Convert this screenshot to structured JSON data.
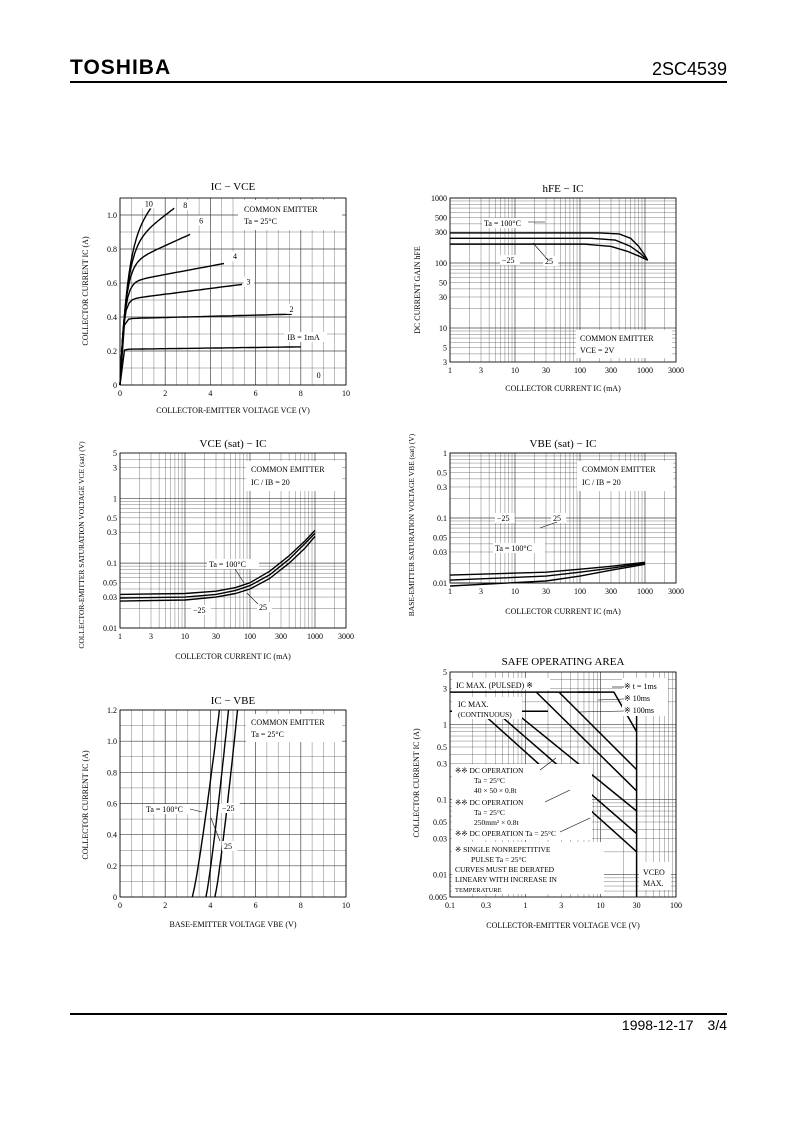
{
  "header": {
    "brand": "TOSHIBA",
    "part_number": "2SC4539"
  },
  "footer": {
    "date": "1998-12-17",
    "page": "3/4"
  },
  "chart_data": [
    {
      "id": "ic-vce",
      "type": "line",
      "title": "IC − VCE",
      "xlabel": "COLLECTOR-EMITTER VOLTAGE   VCE   (V)",
      "ylabel": "COLLECTOR CURRENT   IC   (A)",
      "xlim": [
        0,
        10
      ],
      "ylim": [
        0,
        1.1
      ],
      "x_ticks": [
        0,
        2,
        4,
        6,
        8,
        10
      ],
      "y_ticks": [
        0,
        0.2,
        0.4,
        0.6,
        0.8,
        1.0
      ],
      "condition": [
        "COMMON EMITTER",
        "Ta = 25°C"
      ],
      "series": [
        {
          "name": "IB = 1mA",
          "sat": 0.21,
          "knee": 0.15,
          "end": 8,
          "slope": 0.0018,
          "label_at": [
            7.4,
            0.265
          ]
        },
        {
          "name": "2",
          "sat": 0.39,
          "knee": 0.25,
          "end": 7.6,
          "slope": 0.0035,
          "label_at": [
            7.5,
            0.43
          ]
        },
        {
          "name": "3",
          "sat": 0.5,
          "knee": 0.4,
          "end": 5.4,
          "slope": 0.017,
          "label_at": [
            5.6,
            0.59
          ]
        },
        {
          "name": "4",
          "sat": 0.6,
          "knee": 0.55,
          "end": 4.6,
          "slope": 0.025,
          "label_at": [
            5.0,
            0.74
          ]
        },
        {
          "name": "6",
          "sat": 0.7,
          "knee": 0.7,
          "end": 3.1,
          "slope": 0.06,
          "label_at": [
            3.5,
            0.95
          ]
        },
        {
          "name": "8",
          "sat": 0.8,
          "knee": 0.9,
          "end": 2.4,
          "slope": 0.1,
          "label_at": [
            2.8,
            1.04
          ]
        },
        {
          "name": "10",
          "sat": 0.85,
          "knee": 1.0,
          "end": 1.5,
          "slope": 0.15,
          "label_at": [
            1.1,
            1.05
          ]
        }
      ],
      "extra_labels": [
        {
          "text": "0",
          "at": [
            8.7,
            0.04
          ]
        }
      ]
    },
    {
      "id": "hfe-ic",
      "type": "line",
      "title": "hFE − IC",
      "xlabel": "COLLECTOR CURRENT   IC   (mA)",
      "ylabel": "DC CURRENT GAIN   hFE",
      "xscale": "log",
      "yscale": "log",
      "xlim": [
        1,
        3000
      ],
      "ylim": [
        3,
        1000
      ],
      "x_ticks": [
        1,
        3,
        10,
        30,
        100,
        300,
        1000,
        3000
      ],
      "y_ticks": [
        3,
        5,
        10,
        30,
        50,
        100,
        300,
        500,
        1000
      ],
      "condition": [
        "COMMON EMITTER",
        "VCE = 2V"
      ],
      "series": [
        {
          "name": "Ta = 100°C",
          "points": [
            [
              1,
              290
            ],
            [
              200,
              290
            ],
            [
              400,
              280
            ],
            [
              600,
              240
            ],
            [
              800,
              180
            ],
            [
              1000,
              130
            ],
            [
              1100,
              110
            ]
          ]
        },
        {
          "name": "25",
          "points": [
            [
              1,
              240
            ],
            [
              150,
              240
            ],
            [
              350,
              225
            ],
            [
              600,
              180
            ],
            [
              850,
              140
            ],
            [
              1100,
              110
            ]
          ]
        },
        {
          "name": "−25",
          "points": [
            [
              1,
              195
            ],
            [
              120,
              195
            ],
            [
              300,
              180
            ],
            [
              550,
              150
            ],
            [
              850,
              125
            ],
            [
              1100,
              110
            ]
          ]
        }
      ]
    },
    {
      "id": "vcesat-ic",
      "type": "line",
      "title": "VCE (sat) − IC",
      "xlabel": "COLLECTOR CURRENT   IC   (mA)",
      "ylabel": "COLLECTOR-EMITTER SATURATION VOLTAGE   VCE (sat)   (V)",
      "xscale": "log",
      "yscale": "log",
      "xlim": [
        1,
        3000
      ],
      "ylim": [
        0.01,
        5
      ],
      "x_ticks": [
        1,
        3,
        10,
        30,
        100,
        300,
        1000,
        3000
      ],
      "y_ticks": [
        0.01,
        0.03,
        0.05,
        0.1,
        0.3,
        0.5,
        1,
        3,
        5
      ],
      "condition": [
        "COMMON EMITTER",
        "IC / IB = 20"
      ],
      "series": [
        {
          "name": "Ta = 100°C",
          "points": [
            [
              1,
              0.033
            ],
            [
              10,
              0.034
            ],
            [
              30,
              0.037
            ],
            [
              60,
              0.042
            ],
            [
              100,
              0.05
            ],
            [
              200,
              0.075
            ],
            [
              400,
              0.13
            ],
            [
              700,
              0.22
            ],
            [
              1000,
              0.32
            ]
          ]
        },
        {
          "name": "25",
          "points": [
            [
              1,
              0.029
            ],
            [
              10,
              0.03
            ],
            [
              30,
              0.033
            ],
            [
              60,
              0.038
            ],
            [
              100,
              0.045
            ],
            [
              200,
              0.066
            ],
            [
              400,
              0.115
            ],
            [
              700,
              0.2
            ],
            [
              1000,
              0.29
            ]
          ]
        },
        {
          "name": "−25",
          "points": [
            [
              1,
              0.026
            ],
            [
              10,
              0.027
            ],
            [
              30,
              0.03
            ],
            [
              60,
              0.034
            ],
            [
              100,
              0.04
            ],
            [
              200,
              0.058
            ],
            [
              400,
              0.1
            ],
            [
              700,
              0.17
            ],
            [
              1000,
              0.26
            ]
          ]
        }
      ]
    },
    {
      "id": "vbesat-ic",
      "type": "line",
      "title": "VBE (sat) − IC",
      "xlabel": "COLLECTOR CURRENT   IC   (mA)",
      "ylabel": "BASE-EMITTER SATURATION VOLTAGE   VBE (sat)   (V)",
      "xscale": "log",
      "yscale": "log",
      "xlim": [
        1,
        3000
      ],
      "ylim": [
        0.01,
        1
      ],
      "x_ticks": [
        1,
        3,
        10,
        30,
        100,
        300,
        1000,
        3000
      ],
      "y_tick_labels": [
        "1",
        "0.5",
        "0.3",
        "0.1",
        "0.05",
        "0.03",
        "0.01"
      ],
      "y_tick_rows": [
        0,
        0.1,
        0.18,
        0.33,
        0.43,
        0.5,
        0.66
      ],
      "condition": [
        "COMMON EMITTER",
        "IC / IB = 20"
      ],
      "series": [
        {
          "name": "−25",
          "rows": [
            [
              1,
              0.62
            ],
            [
              30,
              0.605
            ],
            [
              100,
              0.59
            ],
            [
              300,
              0.575
            ],
            [
              1000,
              0.555
            ]
          ]
        },
        {
          "name": "25",
          "rows": [
            [
              1,
              0.645
            ],
            [
              30,
              0.625
            ],
            [
              100,
              0.605
            ],
            [
              300,
              0.585
            ],
            [
              1000,
              0.56
            ]
          ]
        },
        {
          "name": "Ta = 100°C",
          "rows": [
            [
              1,
              0.675
            ],
            [
              30,
              0.65
            ],
            [
              100,
              0.625
            ],
            [
              300,
              0.595
            ],
            [
              1000,
              0.565
            ]
          ]
        }
      ]
    },
    {
      "id": "ic-vbe",
      "type": "line",
      "title": "IC − VBE",
      "xlabel": "BASE-EMITTER VOLTAGE   VBE   (V)",
      "ylabel": "COLLECTOR CURRENT   IC   (A)",
      "xlim": [
        0,
        10
      ],
      "ylim": [
        0,
        1.2
      ],
      "x_ticks": [
        0,
        2,
        4,
        6,
        8,
        10
      ],
      "y_ticks": [
        0,
        0.2,
        0.4,
        0.6,
        0.8,
        1.0,
        1.2
      ],
      "condition": [
        "COMMON EMITTER",
        "Ta = 25°C"
      ],
      "series": [
        {
          "name": "Ta = 100°C",
          "points": [
            [
              3.2,
              0.0
            ],
            [
              3.8,
              0.6
            ],
            [
              4.4,
              1.2
            ]
          ]
        },
        {
          "name": "25",
          "points": [
            [
              3.8,
              0.0
            ],
            [
              4.3,
              0.6
            ],
            [
              4.8,
              1.2
            ]
          ]
        },
        {
          "name": "−25",
          "points": [
            [
              4.2,
              0.0
            ],
            [
              4.7,
              0.6
            ],
            [
              5.2,
              1.2
            ]
          ]
        }
      ]
    },
    {
      "id": "soa",
      "type": "line",
      "title": "SAFE OPERATING AREA",
      "xlabel": "COLLECTOR-EMITTER VOLTAGE   VCE   (V)",
      "ylabel": "COLLECTOR CURRENT   IC   (A)",
      "xscale": "log",
      "yscale": "log",
      "xlim": [
        0.1,
        100
      ],
      "ylim": [
        0.005,
        5
      ],
      "x_ticks": [
        0.1,
        0.3,
        1,
        3,
        10,
        30,
        100
      ],
      "y_ticks": [
        0.005,
        0.01,
        0.03,
        0.05,
        0.1,
        0.3,
        0.5,
        1,
        3,
        5
      ],
      "series": [
        {
          "name": "IC MAX. (PULSED) ※",
          "points": [
            [
              0.1,
              2.7
            ],
            [
              10,
              2.7
            ]
          ]
        },
        {
          "name": "IC MAX. (CONTINUOUS)",
          "points": [
            [
              0.1,
              1.5
            ],
            [
              2,
              1.5
            ]
          ]
        },
        {
          "name": "※ t = 1ms",
          "points": [
            [
              5,
              2.7
            ],
            [
              15,
              2.7
            ],
            [
              30,
              0.8
            ]
          ]
        },
        {
          "name": "※ 10ms",
          "points": [
            [
              2.8,
              2.7
            ],
            [
              30,
              0.25
            ]
          ]
        },
        {
          "name": "※ 100ms",
          "points": [
            [
              1.4,
              2.7
            ],
            [
              30,
              0.13
            ]
          ]
        },
        {
          "name": "※※ DC OPERATION Ta = 25°C 40 × 50 × 0.8t",
          "points": [
            [
              0.7,
              1.5
            ],
            [
              30,
              0.07
            ]
          ]
        },
        {
          "name": "※※ DC OPERATION Ta = 25°C 250mm² × 0.8t",
          "points": [
            [
              0.4,
              1.5
            ],
            [
              30,
              0.035
            ]
          ]
        },
        {
          "name": "※※ DC OPERATION Ta = 25°C",
          "points": [
            [
              0.25,
              1.5
            ],
            [
              30,
              0.02
            ]
          ]
        },
        {
          "name": "VCEO MAX.",
          "points": [
            [
              30,
              2.7
            ],
            [
              30,
              0.005
            ]
          ]
        }
      ],
      "annotations": [
        {
          "lines": [
            "IC MAX. (PULSED) ※"
          ]
        },
        {
          "lines": [
            "IC MAX.",
            "(CONTINUOUS)"
          ]
        },
        {
          "lines": [
            "※ t = 1ms",
            "※ 10ms",
            "※ 100ms"
          ]
        },
        {
          "lines": [
            "※※  DC OPERATION",
            "Ta = 25°C",
            "40 × 50 × 0.8t",
            "※※  DC OPERATION",
            "Ta = 25°C",
            "250mm² × 0.8t",
            "※※  DC OPERATION      Ta = 25°C"
          ]
        },
        {
          "lines": [
            "※  SINGLE NONREPETITIVE",
            "PULSE    Ta = 25°C",
            "CURVES MUST BE DERATED",
            "LINEARY WITH INCREASE IN",
            "TEMPERATURE"
          ]
        },
        {
          "lines": [
            "VCEO",
            "MAX."
          ]
        }
      ]
    }
  ]
}
